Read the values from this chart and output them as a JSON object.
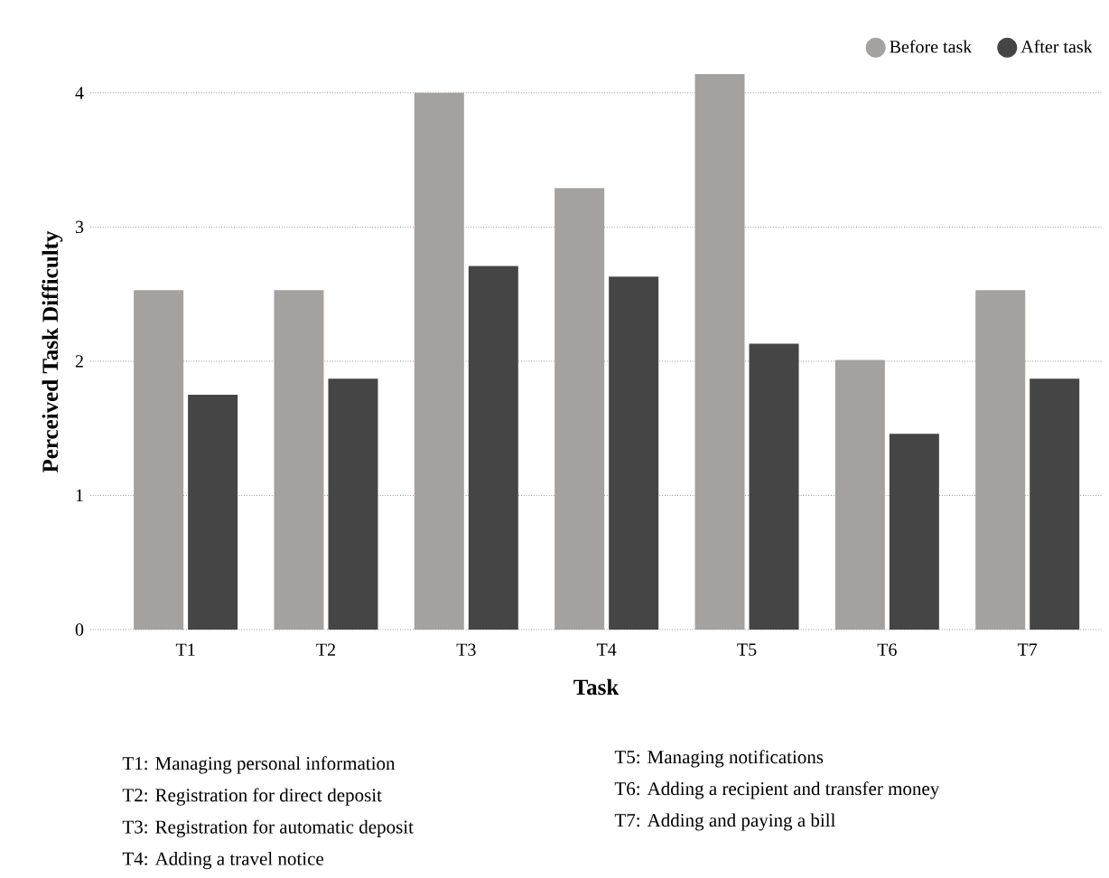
{
  "chart_data": {
    "type": "bar",
    "xlabel": "Task",
    "ylabel": "Perceived Task Difficulty",
    "categories": [
      "T1",
      "T2",
      "T3",
      "T4",
      "T5",
      "T6",
      "T7"
    ],
    "series": [
      {
        "name": "Before task",
        "color": "#a5a19f",
        "values": [
          2.53,
          2.53,
          4.0,
          3.29,
          4.14,
          2.01,
          2.53
        ]
      },
      {
        "name": "After task",
        "color": "#454545",
        "values": [
          1.75,
          1.87,
          2.71,
          2.63,
          2.13,
          1.46,
          1.87
        ]
      }
    ],
    "ylim": [
      0,
      4.14
    ],
    "yticks": [
      0,
      1,
      2,
      3,
      4
    ],
    "grid": "y",
    "legend": "top right",
    "annotations": [
      "T1: Managing personal information",
      "T2: Registration for direct deposit",
      "T3: Registration for automatic deposit",
      "T4: Adding a travel notice",
      "T5: Managing notifications",
      "T6: Adding a recipient and transfer money",
      "T7: Adding and paying a bill"
    ]
  }
}
